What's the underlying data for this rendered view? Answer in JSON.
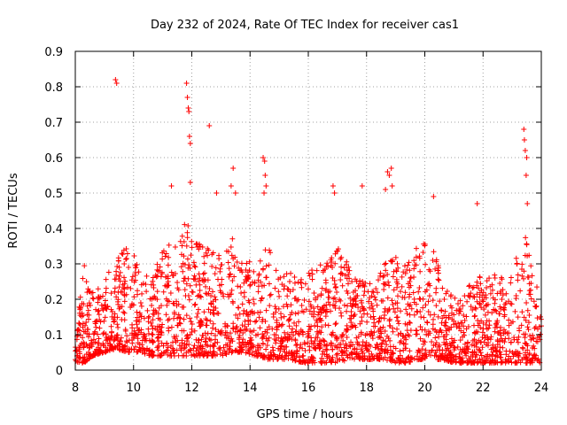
{
  "chart_data": {
    "type": "scatter",
    "title": "Day 232 of 2024, Rate Of TEC Index for receiver cas1",
    "xlabel": "GPS time / hours",
    "ylabel": "ROTI / TECUs",
    "xlim": [
      8,
      24
    ],
    "ylim": [
      0,
      0.9
    ],
    "grid": true,
    "marker": "+",
    "point_color": "#ff0000",
    "x_tick_labels": [
      "8",
      "10",
      "12",
      "14",
      "16",
      "18",
      "20",
      "22",
      "24"
    ],
    "y_tick_labels": [
      "0",
      "0.1",
      "0.2",
      "0.3",
      "0.4",
      "0.5",
      "0.6",
      "0.7",
      "0.8",
      "0.9"
    ],
    "series": [
      {
        "name": "ROTI",
        "points": [
          [
            9.38,
            0.82
          ],
          [
            9.42,
            0.81
          ],
          [
            11.82,
            0.81
          ],
          [
            11.85,
            0.77
          ],
          [
            11.88,
            0.74
          ],
          [
            11.9,
            0.73
          ],
          [
            11.92,
            0.66
          ],
          [
            11.95,
            0.64
          ],
          [
            12.6,
            0.69
          ],
          [
            11.3,
            0.52
          ],
          [
            11.95,
            0.53
          ],
          [
            12.85,
            0.5
          ],
          [
            13.35,
            0.52
          ],
          [
            13.42,
            0.57
          ],
          [
            13.5,
            0.5
          ],
          [
            14.45,
            0.6
          ],
          [
            14.5,
            0.59
          ],
          [
            14.52,
            0.55
          ],
          [
            14.55,
            0.52
          ],
          [
            14.48,
            0.5
          ],
          [
            16.85,
            0.52
          ],
          [
            16.9,
            0.5
          ],
          [
            17.85,
            0.52
          ],
          [
            18.65,
            0.51
          ],
          [
            18.72,
            0.56
          ],
          [
            18.78,
            0.55
          ],
          [
            18.85,
            0.57
          ],
          [
            18.88,
            0.52
          ],
          [
            20.3,
            0.49
          ],
          [
            21.8,
            0.47
          ],
          [
            23.4,
            0.68
          ],
          [
            23.42,
            0.65
          ],
          [
            23.45,
            0.62
          ],
          [
            23.5,
            0.6
          ],
          [
            23.48,
            0.55
          ],
          [
            23.52,
            0.47
          ]
        ],
        "envelope_hours": [
          8,
          8.3,
          8.6,
          9,
          9.4,
          9.8,
          10.2,
          10.6,
          11,
          11.4,
          11.8,
          12.2,
          12.6,
          13,
          13.4,
          13.8,
          14.2,
          14.6,
          15,
          15.4,
          15.8,
          16.2,
          16.6,
          17,
          17.4,
          17.8,
          18.2,
          18.6,
          19,
          19.4,
          19.8,
          20.2,
          20.6,
          21,
          21.4,
          21.8,
          22.2,
          22.6,
          23,
          23.4,
          23.8,
          24
        ],
        "envelope_low": [
          0.02,
          0.02,
          0.04,
          0.05,
          0.06,
          0.05,
          0.05,
          0.04,
          0.04,
          0.04,
          0.04,
          0.04,
          0.04,
          0.04,
          0.05,
          0.05,
          0.04,
          0.03,
          0.03,
          0.03,
          0.02,
          0.02,
          0.02,
          0.02,
          0.03,
          0.03,
          0.03,
          0.03,
          0.02,
          0.02,
          0.03,
          0.03,
          0.03,
          0.02,
          0.02,
          0.02,
          0.02,
          0.02,
          0.02,
          0.02,
          0.02,
          0.02
        ],
        "envelope_high": [
          0.12,
          0.3,
          0.22,
          0.25,
          0.32,
          0.36,
          0.3,
          0.26,
          0.34,
          0.38,
          0.42,
          0.36,
          0.34,
          0.32,
          0.38,
          0.3,
          0.32,
          0.36,
          0.26,
          0.28,
          0.26,
          0.3,
          0.3,
          0.35,
          0.3,
          0.26,
          0.25,
          0.3,
          0.32,
          0.3,
          0.36,
          0.38,
          0.26,
          0.22,
          0.24,
          0.26,
          0.28,
          0.26,
          0.28,
          0.4,
          0.26,
          0.18
        ]
      }
    ]
  }
}
